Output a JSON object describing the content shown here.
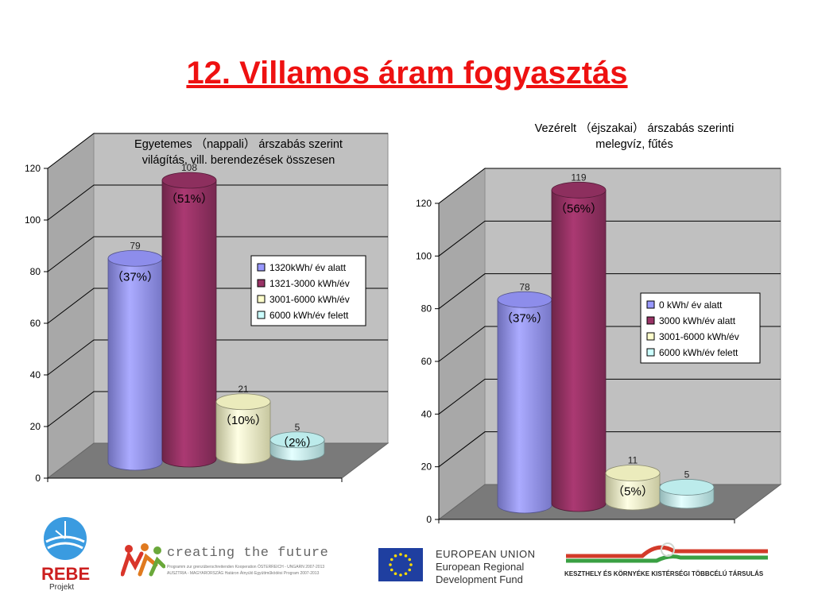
{
  "slide_title": "12. Villamos áram fogyasztás",
  "chart_data": [
    {
      "type": "bar",
      "style": "3d-cylinder",
      "title_lines": [
        "Egyetemes （nappali） árszabás szerint",
        "világítás, vill. berendezések összesen"
      ],
      "categories": [
        "1320kWh/ év alatt",
        "1321-3000 kWh/év",
        "3001-6000 kWh/év",
        "6000 kWh/év felett"
      ],
      "values": [
        79,
        108,
        21,
        5
      ],
      "value_labels": [
        "79",
        "108",
        "21",
        "5"
      ],
      "percent_labels": [
        "（37%）",
        "（51%）",
        "（10%）",
        "（2%）"
      ],
      "colors": [
        "#9999ff",
        "#993366",
        "#ffffcc",
        "#ccffff"
      ],
      "ylim": [
        0,
        120
      ],
      "yticks": [
        "0",
        "20",
        "40",
        "60",
        "80",
        "100",
        "120"
      ],
      "legend_position": "right",
      "grid": true
    },
    {
      "type": "bar",
      "style": "3d-cylinder",
      "title_lines": [
        "Vezérelt （éjszakai） árszabás szerinti",
        "melegvíz, fűtés"
      ],
      "categories": [
        "0 kWh/ év alatt",
        "3000 kWh/év alatt",
        "3001-6000 kWh/év",
        "6000 kWh/év felett"
      ],
      "values": [
        78,
        119,
        11,
        5
      ],
      "value_labels": [
        "78",
        "119",
        "11",
        "5"
      ],
      "percent_labels": [
        "（37%）",
        "（56%）",
        "（5%）",
        ""
      ],
      "colors": [
        "#9999ff",
        "#993366",
        "#ffffcc",
        "#ccffff"
      ],
      "ylim": [
        0,
        120
      ],
      "yticks": [
        "0",
        "20",
        "40",
        "60",
        "80",
        "100",
        "120"
      ],
      "legend_position": "right",
      "grid": true
    }
  ],
  "footer": {
    "rebe_logo_text": "REBE",
    "rebe_logo_subtext": "Projekt",
    "ctf_title": "creating the future",
    "ctf_line1": "Programm zur grenzüberschreitenden Kooperation ÖSTERREICH - UNGARN 2007-2013",
    "ctf_line2": "AUSZTRIA - MAGYARORSZÁG Határon Átnyúló Együttműködési Program 2007-2013",
    "eu_line1": "EUROPEAN UNION",
    "eu_line2": "European Regional",
    "eu_line3": "Development Fund",
    "kesz_text": "KESZTHELY ÉS KÖRNYÉKE KISTÉRSÉGI TÖBBCÉLÚ TÁRSULÁS"
  }
}
